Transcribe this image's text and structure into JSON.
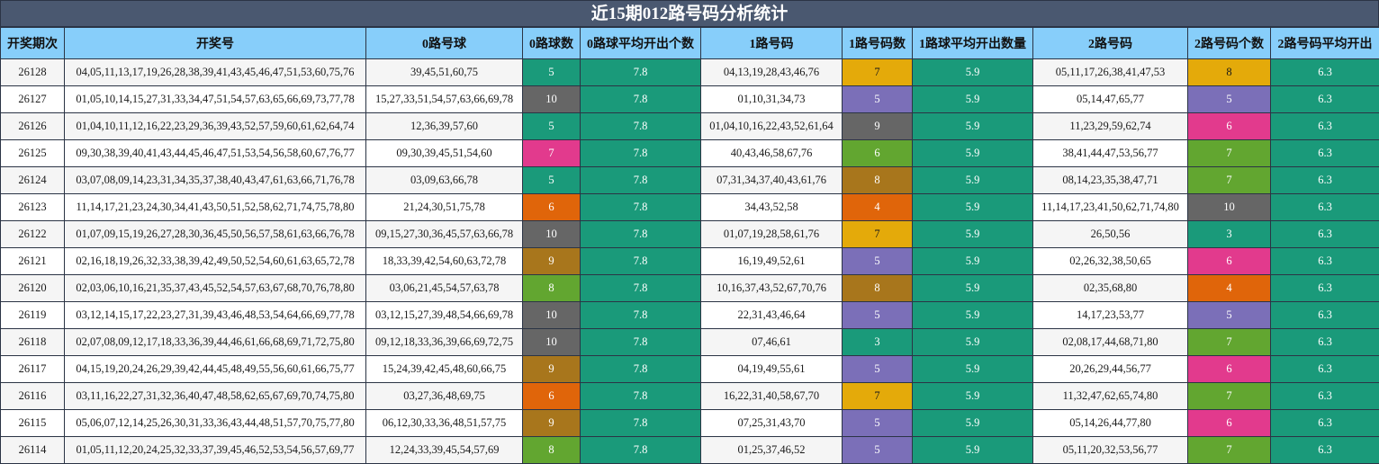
{
  "title": "近15期012路号码分析统计",
  "headers": [
    "开奖期次",
    "开奖号",
    "0路号球",
    "0路球数",
    "0路球平均开出个数",
    "1路号码",
    "1路号码数",
    "1路球平均开出数量",
    "2路号码",
    "2路号码个数",
    "2路号码平均开出"
  ],
  "count_colors": {
    "3": "#1a9a7a",
    "4": "#e0650a",
    "5": "#7b6fb8",
    "6": "#e23a8d",
    "7": "#e4aa0a",
    "8": "#a8761c",
    "9": "#666666",
    "10": "#666666"
  },
  "zero_count_colors": {
    "5": "#1a9a7a",
    "6": "#e0650a",
    "7": "#e23a8d",
    "8": "#62a630",
    "9": "#a8761c",
    "10": "#666666"
  },
  "one_count_colors": {
    "3": "#1a9a7a",
    "4": "#e0650a",
    "5": "#7b6fb8",
    "6": "#62a630",
    "7": "#e4aa0a",
    "8": "#a8761c",
    "9": "#666666"
  },
  "two_count_colors": {
    "3": "#1a9a7a",
    "4": "#e0650a",
    "5": "#7b6fb8",
    "6": "#e23a8d",
    "7": "#62a630",
    "8": "#e4aa0a",
    "10": "#666666"
  },
  "rows": [
    {
      "issue": "26128",
      "numbers": "04,05,11,13,17,19,26,28,38,39,41,43,45,46,47,51,53,60,75,76",
      "r0": "39,45,51,60,75",
      "c0": "5",
      "a0": "7.8",
      "r1": "04,13,19,28,43,46,76",
      "c1": "7",
      "a1": "5.9",
      "r2": "05,11,17,26,38,41,47,53",
      "c2": "8",
      "a2": "6.3"
    },
    {
      "issue": "26127",
      "numbers": "01,05,10,14,15,27,31,33,34,47,51,54,57,63,65,66,69,73,77,78",
      "r0": "15,27,33,51,54,57,63,66,69,78",
      "c0": "10",
      "a0": "7.8",
      "r1": "01,10,31,34,73",
      "c1": "5",
      "a1": "5.9",
      "r2": "05,14,47,65,77",
      "c2": "5",
      "a2": "6.3"
    },
    {
      "issue": "26126",
      "numbers": "01,04,10,11,12,16,22,23,29,36,39,43,52,57,59,60,61,62,64,74",
      "r0": "12,36,39,57,60",
      "c0": "5",
      "a0": "7.8",
      "r1": "01,04,10,16,22,43,52,61,64",
      "c1": "9",
      "a1": "5.9",
      "r2": "11,23,29,59,62,74",
      "c2": "6",
      "a2": "6.3"
    },
    {
      "issue": "26125",
      "numbers": "09,30,38,39,40,41,43,44,45,46,47,51,53,54,56,58,60,67,76,77",
      "r0": "09,30,39,45,51,54,60",
      "c0": "7",
      "a0": "7.8",
      "r1": "40,43,46,58,67,76",
      "c1": "6",
      "a1": "5.9",
      "r2": "38,41,44,47,53,56,77",
      "c2": "7",
      "a2": "6.3"
    },
    {
      "issue": "26124",
      "numbers": "03,07,08,09,14,23,31,34,35,37,38,40,43,47,61,63,66,71,76,78",
      "r0": "03,09,63,66,78",
      "c0": "5",
      "a0": "7.8",
      "r1": "07,31,34,37,40,43,61,76",
      "c1": "8",
      "a1": "5.9",
      "r2": "08,14,23,35,38,47,71",
      "c2": "7",
      "a2": "6.3"
    },
    {
      "issue": "26123",
      "numbers": "11,14,17,21,23,24,30,34,41,43,50,51,52,58,62,71,74,75,78,80",
      "r0": "21,24,30,51,75,78",
      "c0": "6",
      "a0": "7.8",
      "r1": "34,43,52,58",
      "c1": "4",
      "a1": "5.9",
      "r2": "11,14,17,23,41,50,62,71,74,80",
      "c2": "10",
      "a2": "6.3"
    },
    {
      "issue": "26122",
      "numbers": "01,07,09,15,19,26,27,28,30,36,45,50,56,57,58,61,63,66,76,78",
      "r0": "09,15,27,30,36,45,57,63,66,78",
      "c0": "10",
      "a0": "7.8",
      "r1": "01,07,19,28,58,61,76",
      "c1": "7",
      "a1": "5.9",
      "r2": "26,50,56",
      "c2": "3",
      "a2": "6.3"
    },
    {
      "issue": "26121",
      "numbers": "02,16,18,19,26,32,33,38,39,42,49,50,52,54,60,61,63,65,72,78",
      "r0": "18,33,39,42,54,60,63,72,78",
      "c0": "9",
      "a0": "7.8",
      "r1": "16,19,49,52,61",
      "c1": "5",
      "a1": "5.9",
      "r2": "02,26,32,38,50,65",
      "c2": "6",
      "a2": "6.3"
    },
    {
      "issue": "26120",
      "numbers": "02,03,06,10,16,21,35,37,43,45,52,54,57,63,67,68,70,76,78,80",
      "r0": "03,06,21,45,54,57,63,78",
      "c0": "8",
      "a0": "7.8",
      "r1": "10,16,37,43,52,67,70,76",
      "c1": "8",
      "a1": "5.9",
      "r2": "02,35,68,80",
      "c2": "4",
      "a2": "6.3"
    },
    {
      "issue": "26119",
      "numbers": "03,12,14,15,17,22,23,27,31,39,43,46,48,53,54,64,66,69,77,78",
      "r0": "03,12,15,27,39,48,54,66,69,78",
      "c0": "10",
      "a0": "7.8",
      "r1": "22,31,43,46,64",
      "c1": "5",
      "a1": "5.9",
      "r2": "14,17,23,53,77",
      "c2": "5",
      "a2": "6.3"
    },
    {
      "issue": "26118",
      "numbers": "02,07,08,09,12,17,18,33,36,39,44,46,61,66,68,69,71,72,75,80",
      "r0": "09,12,18,33,36,39,66,69,72,75",
      "c0": "10",
      "a0": "7.8",
      "r1": "07,46,61",
      "c1": "3",
      "a1": "5.9",
      "r2": "02,08,17,44,68,71,80",
      "c2": "7",
      "a2": "6.3"
    },
    {
      "issue": "26117",
      "numbers": "04,15,19,20,24,26,29,39,42,44,45,48,49,55,56,60,61,66,75,77",
      "r0": "15,24,39,42,45,48,60,66,75",
      "c0": "9",
      "a0": "7.8",
      "r1": "04,19,49,55,61",
      "c1": "5",
      "a1": "5.9",
      "r2": "20,26,29,44,56,77",
      "c2": "6",
      "a2": "6.3"
    },
    {
      "issue": "26116",
      "numbers": "03,11,16,22,27,31,32,36,40,47,48,58,62,65,67,69,70,74,75,80",
      "r0": "03,27,36,48,69,75",
      "c0": "6",
      "a0": "7.8",
      "r1": "16,22,31,40,58,67,70",
      "c1": "7",
      "a1": "5.9",
      "r2": "11,32,47,62,65,74,80",
      "c2": "7",
      "a2": "6.3"
    },
    {
      "issue": "26115",
      "numbers": "05,06,07,12,14,25,26,30,31,33,36,43,44,48,51,57,70,75,77,80",
      "r0": "06,12,30,33,36,48,51,57,75",
      "c0": "9",
      "a0": "7.8",
      "r1": "07,25,31,43,70",
      "c1": "5",
      "a1": "5.9",
      "r2": "05,14,26,44,77,80",
      "c2": "6",
      "a2": "6.3"
    },
    {
      "issue": "26114",
      "numbers": "01,05,11,12,20,24,25,32,33,37,39,45,46,52,53,54,56,57,69,77",
      "r0": "12,24,33,39,45,54,57,69",
      "c0": "8",
      "a0": "7.8",
      "r1": "01,25,37,46,52",
      "c1": "5",
      "a1": "5.9",
      "r2": "05,11,20,32,53,56,77",
      "c2": "7",
      "a2": "6.3"
    }
  ]
}
